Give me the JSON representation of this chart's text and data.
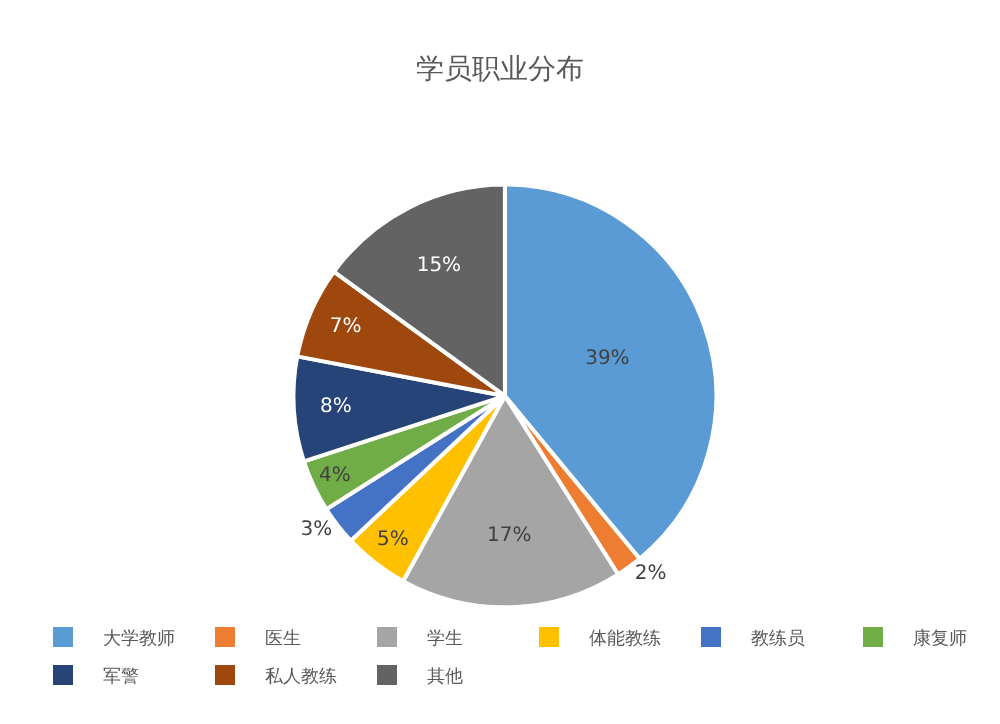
{
  "chart_data": {
    "type": "pie",
    "title": "学员职业分布",
    "categories": [
      "大学教师",
      "医生",
      "学生",
      "体能教练",
      "教练员",
      "康复师",
      "军警",
      "私人教练",
      "其他"
    ],
    "values": [
      39,
      2,
      17,
      5,
      3,
      4,
      8,
      7,
      15
    ],
    "value_labels": [
      "39%",
      "2%",
      "17%",
      "5%",
      "3%",
      "4%",
      "8%",
      "7%",
      "15%"
    ],
    "colors": [
      "#5b9bd5",
      "#ed7d31",
      "#a5a5a5",
      "#ffc000",
      "#4472c4",
      "#70ad47",
      "#264478",
      "#9e480e",
      "#636363"
    ],
    "legend": "bottom"
  }
}
